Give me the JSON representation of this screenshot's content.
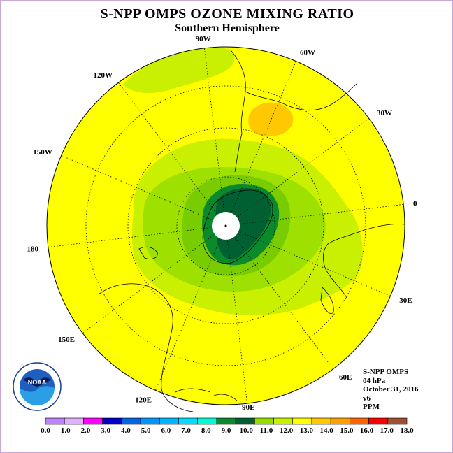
{
  "header": {
    "title": "S-NPP OMPS OZONE MIXING RATIO",
    "subtitle": "Southern Hemisphere"
  },
  "map": {
    "projection": "polar-stereographic-south",
    "longitude_labels": [
      {
        "text": "90W",
        "lon": -90
      },
      {
        "text": "60W",
        "lon": -60
      },
      {
        "text": "30W",
        "lon": -30
      },
      {
        "text": "0",
        "lon": 0
      },
      {
        "text": "30E",
        "lon": 30
      },
      {
        "text": "60E",
        "lon": 60
      },
      {
        "text": "90E",
        "lon": 90
      },
      {
        "text": "120E",
        "lon": 120
      },
      {
        "text": "150E",
        "lon": 150
      },
      {
        "text": "180",
        "lon": 180
      },
      {
        "text": "150W",
        "lon": -150
      },
      {
        "text": "120W",
        "lon": -120
      }
    ],
    "background_color": "#ffff00",
    "field_colors": {
      "level_12": "#c8f000",
      "level_11": "#9ee000",
      "level_10": "#78cc00",
      "level_9": "#0a8a2a",
      "level_8": "#006032",
      "level_14": "#ffc800"
    }
  },
  "info": {
    "lines": [
      "S-NPP OMPS",
      "04 hPa",
      "October 31, 2016",
      "v6",
      "PPM"
    ]
  },
  "logo": {
    "label": "NOAA"
  },
  "colorbar": {
    "colors": [
      "#c080ff",
      "#e0b0ff",
      "#ff00ff",
      "#0000c8",
      "#0064e6",
      "#0096ff",
      "#00b4ff",
      "#00dcff",
      "#00fad2",
      "#0a8a2a",
      "#006032",
      "#96dc00",
      "#c8f000",
      "#ffff00",
      "#ffc800",
      "#ffa000",
      "#ff6400",
      "#ff0000",
      "#a05032"
    ],
    "labels": [
      "0.0",
      "1.0",
      "2.0",
      "3.0",
      "4.0",
      "5.0",
      "6.0",
      "7.0",
      "8.0",
      "9.0",
      "10.0",
      "11.0",
      "12.0",
      "13.0",
      "14.0",
      "15.0",
      "16.0",
      "17.0",
      "18.0"
    ]
  }
}
